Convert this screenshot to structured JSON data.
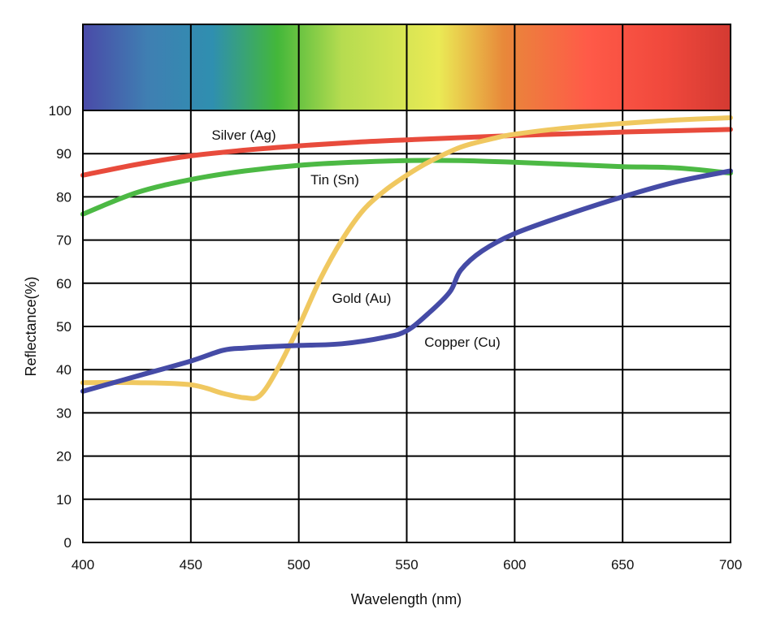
{
  "chart_data": {
    "type": "line",
    "title": "",
    "xlabel": "Wavelength (nm)",
    "ylabel": "Reflectance(%)",
    "xlim": [
      400,
      700
    ],
    "ylim": [
      0,
      100
    ],
    "x_ticks": [
      400,
      450,
      500,
      550,
      600,
      650,
      700
    ],
    "y_ticks": [
      0,
      10,
      20,
      30,
      40,
      50,
      60,
      70,
      80,
      90,
      100
    ],
    "grid": true,
    "legend": "none (series labeled inline on the plot)",
    "spectrum_band": {
      "shown": true,
      "colors": [
        "#4a4aa8",
        "#2f8fb0",
        "#43b73a",
        "#eaea55",
        "#e8883a",
        "#ff5a48",
        "#d43a32"
      ]
    },
    "series": [
      {
        "name": "Silver (Ag)",
        "color": "#e84b3c",
        "x": [
          400,
          425,
          450,
          475,
          500,
          525,
          550,
          575,
          600,
          625,
          650,
          675,
          700
        ],
        "values": [
          85,
          87.5,
          89.5,
          90.8,
          91.8,
          92.6,
          93.2,
          93.7,
          94.2,
          94.6,
          95,
          95.3,
          95.6
        ]
      },
      {
        "name": "Tin (Sn)",
        "color": "#4cb944",
        "x": [
          400,
          425,
          450,
          475,
          500,
          525,
          550,
          575,
          600,
          625,
          650,
          675,
          700
        ],
        "values": [
          76,
          81,
          84,
          86,
          87.3,
          88,
          88.4,
          88.4,
          88,
          87.5,
          87,
          86.7,
          85.5
        ]
      },
      {
        "name": "Gold (Au)",
        "color": "#f0c860",
        "x": [
          400,
          425,
          450,
          465,
          475,
          482,
          490,
          500,
          510,
          520,
          530,
          540,
          550,
          560,
          575,
          590,
          600,
          625,
          650,
          675,
          700
        ],
        "values": [
          37,
          37,
          36.5,
          34.5,
          33.5,
          34,
          40,
          50,
          61,
          70,
          77,
          81.5,
          85,
          88,
          91.5,
          93.5,
          94.5,
          96,
          97,
          97.8,
          98.3
        ]
      },
      {
        "name": "Copper (Cu)",
        "color": "#454ba6",
        "x": [
          400,
          425,
          450,
          465,
          475,
          485,
          500,
          520,
          540,
          550,
          560,
          570,
          575,
          585,
          600,
          625,
          650,
          675,
          700
        ],
        "values": [
          35,
          38.5,
          42,
          44.5,
          45,
          45.3,
          45.6,
          46,
          47.5,
          49,
          53,
          58,
          63,
          67.5,
          71.5,
          76,
          80,
          83.5,
          86
        ]
      }
    ]
  }
}
